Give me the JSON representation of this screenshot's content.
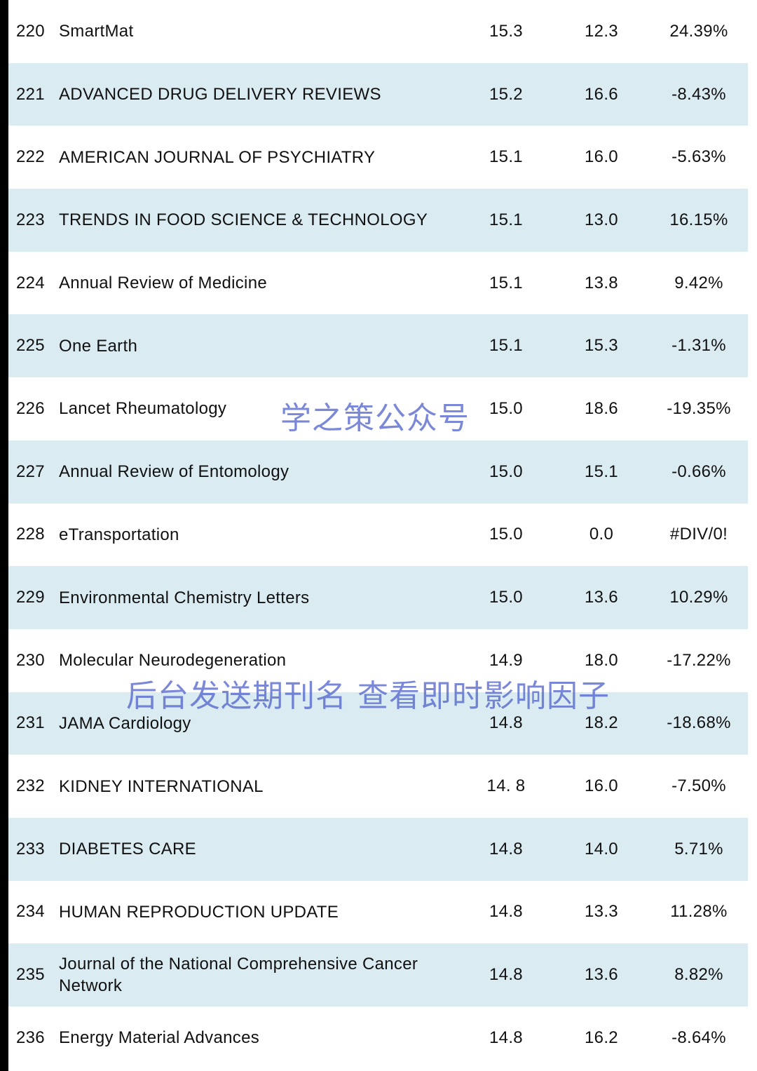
{
  "rows": [
    {
      "rank": "220",
      "journal": "SmartMat",
      "if_2023": "15.3",
      "if_2022": "12.3",
      "change": "24.39%"
    },
    {
      "rank": "221",
      "journal": "ADVANCED DRUG DELIVERY REVIEWS",
      "if_2023": "15.2",
      "if_2022": "16.6",
      "change": "-8.43%"
    },
    {
      "rank": "222",
      "journal": "AMERICAN JOURNAL OF PSYCHIATRY",
      "if_2023": "15.1",
      "if_2022": "16.0",
      "change": "-5.63%"
    },
    {
      "rank": "223",
      "journal": "TRENDS IN FOOD SCIENCE & TECHNOLOGY",
      "if_2023": "15.1",
      "if_2022": "13.0",
      "change": "16.15%"
    },
    {
      "rank": "224",
      "journal": "Annual Review of Medicine",
      "if_2023": "15.1",
      "if_2022": "13.8",
      "change": "9.42%"
    },
    {
      "rank": "225",
      "journal": "One Earth",
      "if_2023": "15.1",
      "if_2022": "15.3",
      "change": "-1.31%"
    },
    {
      "rank": "226",
      "journal": "Lancet Rheumatology",
      "if_2023": "15.0",
      "if_2022": "18.6",
      "change": "-19.35%"
    },
    {
      "rank": "227",
      "journal": "Annual Review of Entomology",
      "if_2023": "15.0",
      "if_2022": "15.1",
      "change": "-0.66%"
    },
    {
      "rank": "228",
      "journal": "eTransportation",
      "if_2023": "15.0",
      "if_2022": "0.0",
      "change": "#DIV/0!"
    },
    {
      "rank": "229",
      "journal": "Environmental Chemistry Letters",
      "if_2023": "15.0",
      "if_2022": "13.6",
      "change": "10.29%"
    },
    {
      "rank": "230",
      "journal": "Molecular Neurodegeneration",
      "if_2023": "14.9",
      "if_2022": "18.0",
      "change": "-17.22%"
    },
    {
      "rank": "231",
      "journal": "JAMA Cardiology",
      "if_2023": "14.8",
      "if_2022": "18.2",
      "change": "-18.68%"
    },
    {
      "rank": "232",
      "journal": "KIDNEY INTERNATIONAL",
      "if_2023": "14. 8",
      "if_2022": "16.0",
      "change": "-7.50%"
    },
    {
      "rank": "233",
      "journal": "DIABETES CARE",
      "if_2023": "14.8",
      "if_2022": "14.0",
      "change": "5.71%"
    },
    {
      "rank": "234",
      "journal": "HUMAN REPRODUCTION UPDATE",
      "if_2023": "14.8",
      "if_2022": "13.3",
      "change": "11.28%"
    },
    {
      "rank": "235",
      "journal": "Journal of the National Comprehensive Cancer Network",
      "if_2023": "14.8",
      "if_2022": "13.6",
      "change": "8.82%"
    },
    {
      "rank": "236",
      "journal": "Energy Material Advances",
      "if_2023": "14.8",
      "if_2022": "16.2",
      "change": "-8.64%"
    }
  ],
  "watermarks": {
    "primary": "学之策公众号",
    "secondary": "后台发送期刊名 查看即时影响因子"
  },
  "colors": {
    "row_shade": "#daebf2",
    "watermark": "#465ac8",
    "border": "#000000"
  }
}
